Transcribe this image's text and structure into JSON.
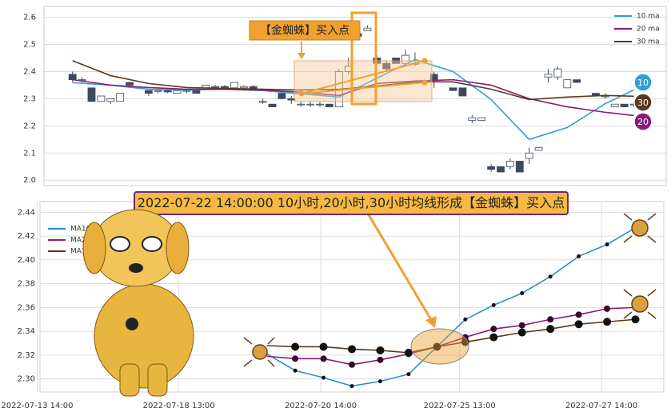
{
  "chart_data": [
    {
      "type": "candlestick",
      "annotation": "【金蜘蛛】买入点",
      "xlim": [
        -3,
        62.4
      ],
      "ylim": [
        1.98,
        2.64
      ],
      "yticks": [
        {
          "value": 2.0,
          "label": "2.0"
        },
        2.1,
        2.2,
        2.3,
        2.4,
        2.5,
        2.6
      ],
      "grid": true,
      "legend": "upper right",
      "up_color": "#ffffff",
      "down_color": "#3d4a5c",
      "open": [
        2.39,
        2.37,
        2.34,
        2.29,
        2.29,
        2.29,
        2.36,
        null,
        2.33,
        2.33,
        2.33,
        2.32,
        2.33,
        2.33,
        2.34,
        2.345,
        2.345,
        2.34,
        2.34,
        2.345,
        2.29,
        2.28,
        2.32,
        2.3,
        2.28,
        2.28,
        2.28,
        2.28,
        2.27,
        2.4,
        2.54,
        2.55,
        2.45,
        2.43,
        2.45,
        2.43,
        2.43,
        null,
        2.39,
        null,
        2.34,
        2.34,
        2.22,
        2.22,
        2.05,
        2.05,
        2.05,
        2.07,
        2.08,
        2.11,
        2.38,
        2.38,
        2.34,
        2.37,
        null,
        2.32,
        2.31,
        2.27,
        2.28,
        2.28
      ],
      "high": [
        2.4,
        2.38,
        2.34,
        2.31,
        2.3,
        2.32,
        2.36,
        null,
        2.33,
        2.33,
        2.33,
        2.33,
        2.33,
        2.33,
        2.35,
        2.35,
        2.35,
        2.36,
        2.35,
        2.35,
        2.3,
        2.28,
        2.32,
        2.31,
        2.29,
        2.29,
        2.29,
        2.28,
        2.41,
        2.45,
        2.55,
        2.57,
        2.46,
        2.44,
        2.45,
        2.48,
        2.47,
        null,
        2.4,
        null,
        2.34,
        2.34,
        2.24,
        2.23,
        2.06,
        2.05,
        2.08,
        2.07,
        2.12,
        2.12,
        2.41,
        2.42,
        2.37,
        2.37,
        null,
        2.32,
        2.32,
        2.28,
        2.28,
        2.29
      ],
      "low": [
        2.36,
        2.36,
        2.29,
        2.29,
        2.28,
        2.29,
        2.35,
        null,
        2.31,
        2.32,
        2.32,
        2.32,
        2.32,
        2.32,
        2.34,
        2.34,
        2.34,
        2.34,
        2.33,
        2.33,
        2.28,
        2.27,
        2.3,
        2.28,
        2.27,
        2.27,
        2.27,
        2.27,
        2.27,
        2.39,
        2.53,
        2.55,
        2.43,
        2.4,
        2.43,
        2.42,
        2.42,
        null,
        2.34,
        null,
        2.33,
        2.31,
        2.21,
        2.22,
        2.03,
        2.03,
        2.04,
        2.03,
        2.06,
        2.11,
        2.36,
        2.37,
        2.34,
        2.36,
        null,
        2.31,
        2.3,
        2.27,
        2.27,
        2.27
      ],
      "close": [
        2.37,
        2.37,
        2.29,
        2.31,
        2.3,
        2.32,
        2.35,
        null,
        2.32,
        2.33,
        2.325,
        2.33,
        2.33,
        2.32,
        2.35,
        2.345,
        2.34,
        2.36,
        2.345,
        2.33,
        2.29,
        2.27,
        2.3,
        2.295,
        2.28,
        2.28,
        2.28,
        2.27,
        2.4,
        2.42,
        2.53,
        2.56,
        2.43,
        2.41,
        2.43,
        2.46,
        2.43,
        null,
        2.37,
        null,
        2.33,
        2.31,
        2.23,
        2.23,
        2.04,
        2.03,
        2.07,
        2.03,
        2.1,
        2.12,
        2.39,
        2.41,
        2.37,
        2.36,
        null,
        2.31,
        2.31,
        2.28,
        2.27,
        2.28
      ],
      "ma_x": [
        0,
        4,
        8,
        12,
        16,
        20,
        24,
        28,
        32,
        36,
        40,
        44,
        48,
        52,
        56,
        59
      ],
      "series": [
        {
          "name": "10 ma",
          "badge": "10",
          "color": "#2f9fd8",
          "values": [
            2.359,
            2.35,
            2.335,
            2.332,
            2.335,
            2.33,
            2.318,
            2.306,
            2.376,
            2.444,
            2.4,
            2.297,
            2.15,
            2.194,
            2.282,
            2.332
          ]
        },
        {
          "name": "20 ma",
          "badge": "20",
          "color": "#8b1a7a",
          "values": [
            2.37,
            2.35,
            2.341,
            2.335,
            2.335,
            2.332,
            2.324,
            2.312,
            2.356,
            2.365,
            2.37,
            2.35,
            2.3,
            2.27,
            2.25,
            2.238
          ]
        },
        {
          "name": "30 ma",
          "badge": "30",
          "color": "#5a3a1a",
          "values": [
            2.44,
            2.385,
            2.356,
            2.341,
            2.338,
            2.335,
            2.332,
            2.335,
            2.347,
            2.362,
            2.362,
            2.335,
            2.297,
            2.306,
            2.312,
            2.309
          ]
        }
      ]
    },
    {
      "type": "line",
      "annotation": "2022-07-22 14:00:00 10小时,20小时,30小时均线形成【金蜘蛛】买入点",
      "x": [
        -1,
        0,
        1,
        2,
        3,
        4,
        5,
        6,
        7,
        8,
        9,
        10,
        11,
        12
      ],
      "xlim": [
        -9,
        13
      ],
      "ylim": [
        2.289,
        2.449
      ],
      "xticks": [
        {
          "value": -9.1,
          "label": "2022-07-13 14:00"
        },
        {
          "value": -4.1,
          "label": "2022-07-18 13:00"
        },
        {
          "value": 0.9,
          "label": "2022-07-20 14:00"
        },
        {
          "value": 5.8,
          "label": "2022-07-25 13:00"
        },
        {
          "value": 10.8,
          "label": "2022-07-27 14:00"
        }
      ],
      "yticks": [
        {
          "value": 2.3,
          "label": "2.30"
        },
        2.32,
        2.34,
        2.36,
        2.38,
        {
          "value": 2.4,
          "label": "2.40"
        },
        2.42,
        2.44
      ],
      "grid": true,
      "legend": "upper left",
      "series": [
        {
          "name": "MA10",
          "color": "#2a8fd0",
          "marker_color": "#111111",
          "values": [
            2.321,
            2.307,
            2.301,
            2.294,
            2.298,
            2.304,
            2.327,
            2.35,
            2.362,
            2.372,
            2.386,
            2.403,
            2.413,
            2.427
          ]
        },
        {
          "name": "MA20",
          "color": "#8b1a7a",
          "marker_color": "#3a0a2a",
          "values": [
            2.319,
            2.317,
            2.317,
            2.312,
            2.316,
            2.321,
            2.327,
            2.335,
            2.342,
            2.345,
            2.35,
            2.354,
            2.359,
            2.36
          ]
        },
        {
          "name": "MA30",
          "color": "#5a3a1a",
          "marker_color": "#111111",
          "values": [
            2.328,
            2.327,
            2.327,
            2.325,
            2.324,
            2.322,
            2.327,
            2.331,
            2.335,
            2.339,
            2.342,
            2.346,
            2.348,
            2.35
          ]
        }
      ]
    }
  ]
}
